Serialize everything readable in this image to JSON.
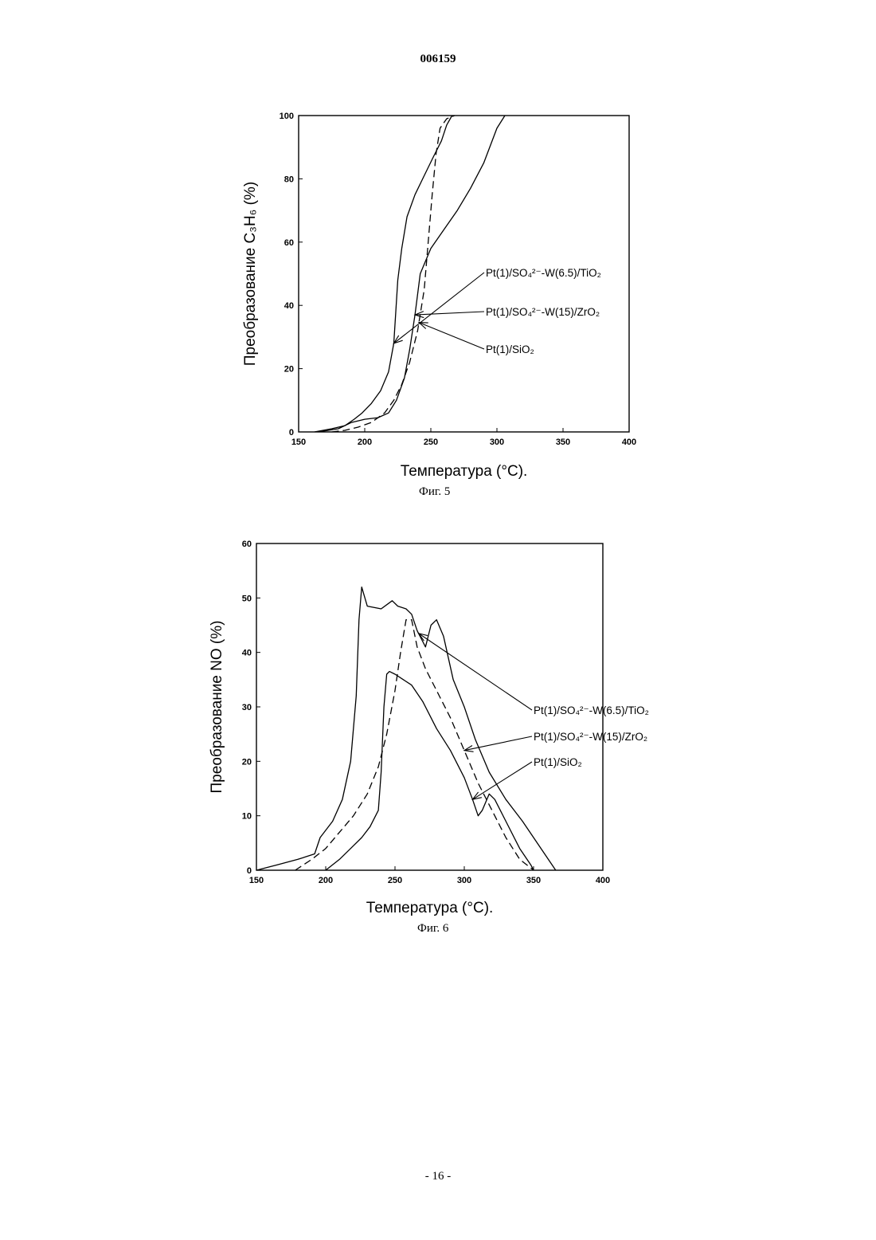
{
  "header": {
    "doc_number": "006159"
  },
  "footer": {
    "page_label": "- 16 -"
  },
  "chart_data": [
    {
      "id": "fig5",
      "type": "line",
      "caption": "Фиг. 5",
      "xlabel": "Температура (°C).",
      "ylabel": "Преобразование C₃H₆ (%)",
      "xlim": [
        150,
        400
      ],
      "ylim": [
        0,
        100
      ],
      "xticks": [
        150,
        200,
        250,
        300,
        350,
        400
      ],
      "yticks": [
        0,
        20,
        40,
        60,
        80,
        100
      ],
      "series": [
        {
          "name": "Pt(1)/SO₄²⁻-W(6.5)/TiO₂",
          "style": "solid",
          "x": [
            162,
            175,
            185,
            192,
            198,
            205,
            212,
            218,
            222,
            225,
            228,
            232,
            238,
            245,
            252,
            258,
            262,
            266
          ],
          "y": [
            0,
            1,
            2,
            4,
            6,
            9,
            13,
            19,
            28,
            48,
            58,
            68,
            75,
            81,
            87,
            92,
            97,
            100
          ],
          "label_at": 222
        },
        {
          "name": "Pt(1)/SO₄²⁻-W(15)/ZrO₂",
          "style": "solid",
          "x": [
            165,
            180,
            190,
            200,
            210,
            218,
            224,
            230,
            234,
            238,
            242,
            250,
            260,
            270,
            280,
            290,
            300,
            306
          ],
          "y": [
            0,
            1,
            3,
            4,
            4.5,
            6,
            10,
            17,
            26,
            37,
            50,
            58,
            64,
            70,
            77,
            85,
            96,
            100
          ],
          "label_at": 238
        },
        {
          "name": "Pt(1)/SiO₂",
          "style": "dashed",
          "x": [
            175,
            185,
            195,
            205,
            215,
            222,
            228,
            234,
            240,
            245,
            248,
            251,
            254,
            257,
            262,
            268
          ],
          "y": [
            0,
            0.5,
            1.5,
            3,
            6,
            10,
            15,
            22,
            32,
            45,
            60,
            75,
            88,
            96,
            99,
            100
          ],
          "label_at": 241
        }
      ]
    },
    {
      "id": "fig6",
      "type": "line",
      "caption": "Фиг. 6",
      "xlabel": "Температура (°C).",
      "ylabel": "Преобразование NO (%)",
      "xlim": [
        150,
        400
      ],
      "ylim": [
        0,
        60
      ],
      "xticks": [
        150,
        200,
        250,
        300,
        350,
        400
      ],
      "yticks": [
        0,
        10,
        20,
        30,
        40,
        50,
        60
      ],
      "series": [
        {
          "name": "Pt(1)/SO₄²⁻-W(6.5)/TiO₂",
          "style": "solid",
          "x": [
            150,
            165,
            180,
            192,
            196,
            205,
            212,
            218,
            222,
            224,
            226,
            230,
            240,
            248,
            252,
            258,
            262,
            266,
            270,
            272,
            276,
            280,
            285,
            292,
            300,
            308,
            318,
            330,
            342,
            358,
            366
          ],
          "y": [
            0,
            1,
            2,
            3,
            6,
            9,
            13,
            20,
            32,
            46,
            52,
            48.5,
            48,
            49.5,
            48.5,
            48,
            47,
            44,
            42,
            41,
            45,
            46,
            43,
            35,
            30,
            24,
            18,
            13,
            9,
            3,
            0
          ],
          "label_at": 267
        },
        {
          "name": "Pt(1)/SO₄²⁻-W(15)/ZrO₂",
          "style": "dashed",
          "x": [
            178,
            190,
            200,
            210,
            220,
            230,
            238,
            244,
            250,
            254,
            258,
            262,
            266,
            272,
            280,
            290,
            300,
            310,
            320,
            330,
            340,
            350
          ],
          "y": [
            0,
            2,
            4,
            7,
            10,
            14,
            19,
            25,
            33,
            40,
            46,
            46,
            41,
            37,
            33,
            28,
            22,
            16,
            11,
            6,
            2,
            0
          ],
          "label_at": 300
        },
        {
          "name": "Pt(1)/SiO₂",
          "style": "solid",
          "x": [
            200,
            210,
            218,
            226,
            232,
            238,
            240,
            242,
            244,
            246,
            250,
            256,
            262,
            270,
            280,
            290,
            300,
            306,
            310,
            313,
            318,
            322,
            330,
            340,
            348,
            350
          ],
          "y": [
            0,
            2,
            4,
            6,
            8,
            11,
            18,
            30,
            36,
            36.5,
            36,
            35,
            34,
            31,
            26,
            22,
            17,
            13,
            10,
            11,
            14,
            13,
            9,
            4,
            1,
            0
          ],
          "label_at": 306
        }
      ]
    }
  ]
}
